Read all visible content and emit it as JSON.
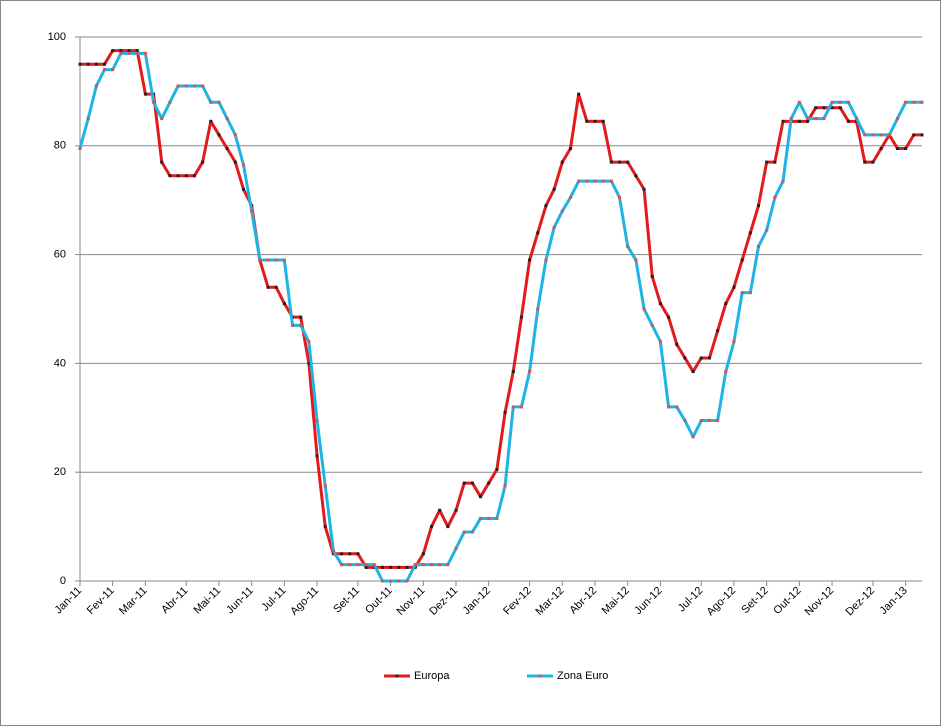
{
  "chart_data": {
    "type": "line",
    "categories": [
      "Jan-11",
      null,
      null,
      null,
      "Fev-11",
      null,
      null,
      null,
      "Mar-11",
      null,
      null,
      null,
      null,
      "Abr-11",
      null,
      null,
      null,
      "Mai-11",
      null,
      null,
      null,
      "Jun-11",
      null,
      null,
      null,
      "Jul-11",
      null,
      null,
      null,
      "Ago-11",
      null,
      null,
      null,
      null,
      "Set-11",
      null,
      null,
      null,
      "Out-11",
      null,
      null,
      null,
      "Nov-11",
      null,
      null,
      null,
      "Dez-11",
      null,
      null,
      null,
      "Jan-12",
      null,
      null,
      null,
      null,
      "Fev-12",
      null,
      null,
      null,
      "Mar-12",
      null,
      null,
      null,
      "Abr-12",
      null,
      null,
      null,
      "Mai-12",
      null,
      null,
      null,
      "Jun-12",
      null,
      null,
      null,
      null,
      "Jul-12",
      null,
      null,
      null,
      "Ago-12",
      null,
      null,
      null,
      "Set-12",
      null,
      null,
      null,
      "Out-12",
      null,
      null,
      null,
      "Nov-12",
      null,
      null,
      null,
      null,
      "Dez-12",
      null,
      null,
      null,
      "Jan-13",
      null,
      null
    ],
    "series": [
      {
        "name": "Europa",
        "color": "#e31a1c",
        "marker_color": "#222222",
        "values": [
          95,
          95,
          95,
          95,
          97.5,
          97.5,
          97.5,
          97.5,
          89.5,
          89.5,
          77,
          74.5,
          74.5,
          74.5,
          74.5,
          77,
          84.5,
          82,
          79.5,
          77,
          72,
          69,
          59,
          54,
          54,
          51,
          48.5,
          48.5,
          40,
          23,
          10,
          5,
          5,
          5,
          5,
          2.5,
          2.5,
          2.5,
          2.5,
          2.5,
          2.5,
          2.5,
          5,
          10,
          13,
          10,
          13,
          18,
          18,
          15.5,
          18,
          20.5,
          31,
          38.5,
          48.5,
          59,
          64,
          69,
          72,
          77,
          79.5,
          89.5,
          84.5,
          84.5,
          84.5,
          77,
          77,
          77,
          74.5,
          72,
          56,
          51,
          48.5,
          43.5,
          41,
          38.5,
          41,
          41,
          46,
          51,
          54,
          59,
          64,
          69,
          77,
          77,
          84.5,
          84.5,
          84.5,
          84.5,
          87,
          87,
          87,
          87,
          84.5,
          84.5,
          77,
          77,
          79.5,
          82,
          79.5,
          79.5,
          82,
          82
        ]
      },
      {
        "name": "Zona Euro",
        "color": "#1eb4e6",
        "marker_color": "#e0504a",
        "values": [
          79.5,
          85,
          91,
          94,
          94,
          97,
          97,
          97,
          97,
          88,
          85,
          88,
          91,
          91,
          91,
          91,
          88,
          88,
          85,
          82,
          76.5,
          68,
          59,
          59,
          59,
          59,
          47,
          47,
          44,
          29.5,
          17.5,
          5.5,
          3,
          3,
          3,
          3,
          3,
          0,
          0,
          0,
          0,
          3,
          3,
          3,
          3,
          3,
          6,
          9,
          9,
          11.5,
          11.5,
          11.5,
          17.5,
          32,
          32,
          38.5,
          50,
          59,
          65,
          68,
          70.5,
          73.5,
          73.5,
          73.5,
          73.5,
          73.5,
          70.5,
          61.5,
          59,
          50,
          47,
          44,
          32,
          32,
          29.5,
          26.5,
          29.5,
          29.5,
          29.5,
          38.5,
          44,
          53,
          53,
          61.5,
          64.5,
          70.5,
          73.5,
          85,
          88,
          85,
          85,
          85,
          88,
          88,
          88,
          85,
          82,
          82,
          82,
          82,
          85,
          88,
          88,
          88
        ]
      }
    ],
    "ylim": [
      0,
      100
    ],
    "yticks": [
      0,
      20,
      40,
      60,
      80,
      100
    ],
    "grid": true,
    "legend": "bottom"
  }
}
